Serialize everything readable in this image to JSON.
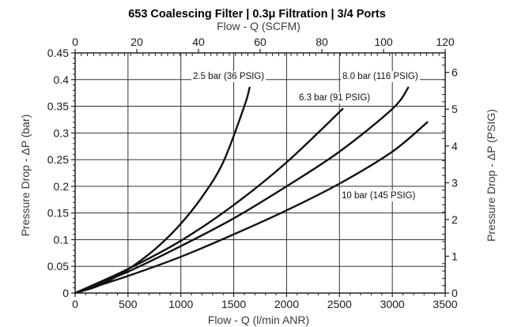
{
  "chart_data": {
    "type": "line",
    "title": "653 Coalescing Filter | 0.3μ Filtration | 3/4 Ports",
    "xlabel": "Flow - Q (l/min ANR)",
    "x2label": "Flow - Q (SCFM)",
    "ylabel": "Pressure Drop - ΔP (bar)",
    "y2label": "Pressure Drop - ΔP (PSIG)",
    "xlim": [
      0,
      3500
    ],
    "x2lim": [
      0,
      120
    ],
    "ylim": [
      0,
      0.45
    ],
    "y2lim": [
      0,
      6.53
    ],
    "x_ticks": [
      "0",
      "500",
      "1000",
      "1500",
      "2000",
      "2500",
      "3000",
      "3500"
    ],
    "x2_ticks": [
      "0",
      "20",
      "40",
      "60",
      "80",
      "100",
      "120"
    ],
    "y_ticks": [
      "0",
      "0.05",
      "0.1",
      "0.15",
      "0.2",
      "0.25",
      "0.3",
      "0.35",
      "0.4",
      "0.45"
    ],
    "y2_ticks": [
      "0",
      "1",
      "2",
      "3",
      "4",
      "5",
      "6"
    ],
    "grid": true,
    "series": [
      {
        "name": "2.5 bar (36 PSIG)",
        "x": [
          0,
          200,
          400,
          600,
          800,
          1000,
          1200,
          1400,
          1600,
          1650
        ],
        "y": [
          0,
          0.012,
          0.032,
          0.058,
          0.09,
          0.13,
          0.18,
          0.245,
          0.35,
          0.385
        ]
      },
      {
        "name": "6.3 bar (91 PSIG)",
        "x": [
          0,
          500,
          1000,
          1500,
          2000,
          2530
        ],
        "y": [
          0,
          0.045,
          0.098,
          0.165,
          0.245,
          0.345
        ]
      },
      {
        "name": "8.0 bar (116 PSIG)",
        "x": [
          0,
          500,
          1000,
          1500,
          2000,
          2500,
          3000,
          3150
        ],
        "y": [
          0,
          0.04,
          0.088,
          0.14,
          0.2,
          0.265,
          0.345,
          0.385
        ]
      },
      {
        "name": "10 bar (145 PSIG)",
        "x": [
          0,
          500,
          1000,
          1500,
          2000,
          2500,
          3000,
          3330
        ],
        "y": [
          0,
          0.032,
          0.068,
          0.11,
          0.155,
          0.205,
          0.265,
          0.32
        ]
      }
    ]
  }
}
